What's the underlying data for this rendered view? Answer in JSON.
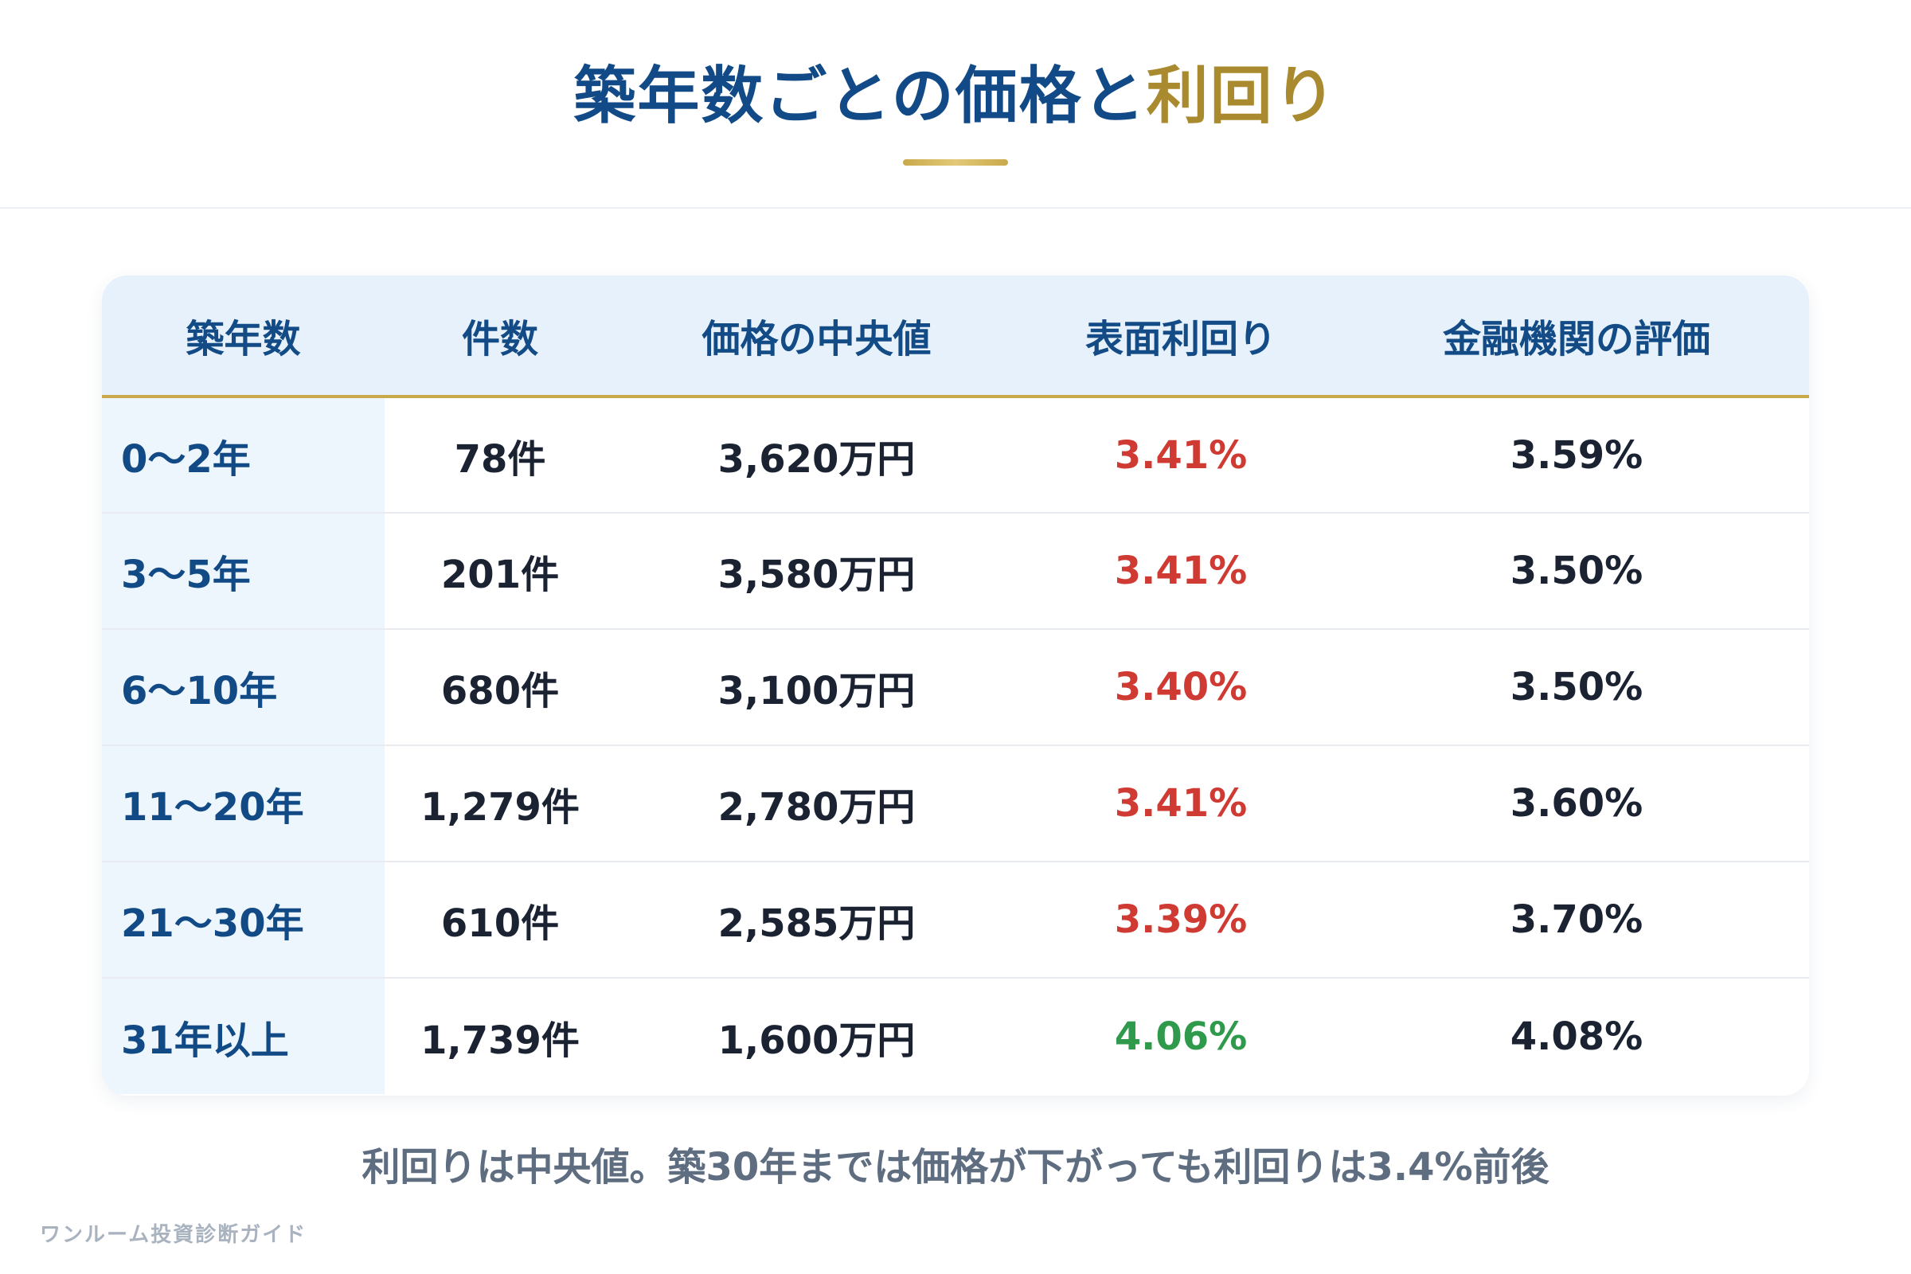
{
  "title": {
    "main": "築年数ごとの価格と",
    "accent": "利回り"
  },
  "table": {
    "headers": [
      "築年数",
      "件数",
      "価格の中央値",
      "表面利回り",
      "金融機関の評価"
    ],
    "rows": [
      {
        "age": "0〜2年",
        "count": "78件",
        "median_price": "3,620万円",
        "surface_yield": "3.41%",
        "yield_color": "red",
        "bank_eval": "3.59%"
      },
      {
        "age": "3〜5年",
        "count": "201件",
        "median_price": "3,580万円",
        "surface_yield": "3.41%",
        "yield_color": "red",
        "bank_eval": "3.50%"
      },
      {
        "age": "6〜10年",
        "count": "680件",
        "median_price": "3,100万円",
        "surface_yield": "3.40%",
        "yield_color": "red",
        "bank_eval": "3.50%"
      },
      {
        "age": "11〜20年",
        "count": "1,279件",
        "median_price": "2,780万円",
        "surface_yield": "3.41%",
        "yield_color": "red",
        "bank_eval": "3.60%"
      },
      {
        "age": "21〜30年",
        "count": "610件",
        "median_price": "2,585万円",
        "surface_yield": "3.39%",
        "yield_color": "red",
        "bank_eval": "3.70%"
      },
      {
        "age": "31年以上",
        "count": "1,739件",
        "median_price": "1,600万円",
        "surface_yield": "4.06%",
        "yield_color": "green",
        "bank_eval": "4.08%"
      }
    ]
  },
  "note": "利回りは中央値。築30年までは価格が下がっても利回りは3.4%前後",
  "footer": "ワンルーム投資診断ガイド",
  "colors": {
    "navy": "#114a86",
    "gold": "#a98a2f",
    "red": "#cf3a33",
    "green": "#2f9a4b"
  }
}
